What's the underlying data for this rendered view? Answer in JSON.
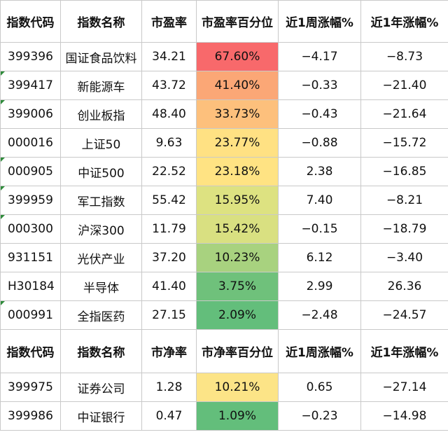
{
  "table1": {
    "headers": [
      "指数代码",
      "指数名称",
      "市盈率",
      "市盈率百分位",
      "近1周涨幅%",
      "近1年涨幅%"
    ],
    "rows": [
      {
        "code": "399396",
        "name": "国证食品饮料",
        "ratio": "34.21",
        "pct": "67.60%",
        "pct_color": "#f8696b",
        "week": "−4.17",
        "year": "−8.73",
        "marked": false
      },
      {
        "code": "399417",
        "name": "新能源车",
        "ratio": "43.72",
        "pct": "41.40%",
        "pct_color": "#fba776",
        "week": "−0.33",
        "year": "−21.40",
        "marked": true
      },
      {
        "code": "399006",
        "name": "创业板指",
        "ratio": "48.40",
        "pct": "33.73%",
        "pct_color": "#fdc07c",
        "week": "−0.43",
        "year": "−21.64",
        "marked": true
      },
      {
        "code": "000016",
        "name": "上证50",
        "ratio": "9.63",
        "pct": "23.77%",
        "pct_color": "#ffe183",
        "week": "−0.88",
        "year": "−15.72",
        "marked": false
      },
      {
        "code": "000905",
        "name": "中证500",
        "ratio": "22.52",
        "pct": "23.18%",
        "pct_color": "#ffe383",
        "week": "2.38",
        "year": "−16.85",
        "marked": true
      },
      {
        "code": "399959",
        "name": "军工指数",
        "ratio": "55.42",
        "pct": "15.95%",
        "pct_color": "#dde281",
        "week": "7.40",
        "year": "−8.21",
        "marked": true
      },
      {
        "code": "000300",
        "name": "沪深300",
        "ratio": "11.79",
        "pct": "15.42%",
        "pct_color": "#d9e081",
        "week": "−0.15",
        "year": "−18.79",
        "marked": true
      },
      {
        "code": "931151",
        "name": "光伏产业",
        "ratio": "37.20",
        "pct": "10.23%",
        "pct_color": "#a8d27f",
        "week": "6.12",
        "year": "−3.40",
        "marked": false
      },
      {
        "code": "H30184",
        "name": "半导体",
        "ratio": "41.40",
        "pct": "3.75%",
        "pct_color": "#6fc17b",
        "week": "2.99",
        "year": "26.36",
        "marked": false
      },
      {
        "code": "000991",
        "name": "全指医药",
        "ratio": "27.15",
        "pct": "2.09%",
        "pct_color": "#63be7b",
        "week": "−2.48",
        "year": "−24.57",
        "marked": true
      }
    ]
  },
  "table2": {
    "headers": [
      "指数代码",
      "指数名称",
      "市净率",
      "市净率百分位",
      "近1周涨幅%",
      "近1年涨幅%"
    ],
    "rows": [
      {
        "code": "399975",
        "name": "证券公司",
        "ratio": "1.28",
        "pct": "10.21%",
        "pct_color": "#fce487",
        "week": "0.65",
        "year": "−27.14",
        "marked": false
      },
      {
        "code": "399986",
        "name": "中证银行",
        "ratio": "0.47",
        "pct": "1.09%",
        "pct_color": "#63be7b",
        "week": "−0.23",
        "year": "−14.98",
        "marked": false
      }
    ]
  }
}
